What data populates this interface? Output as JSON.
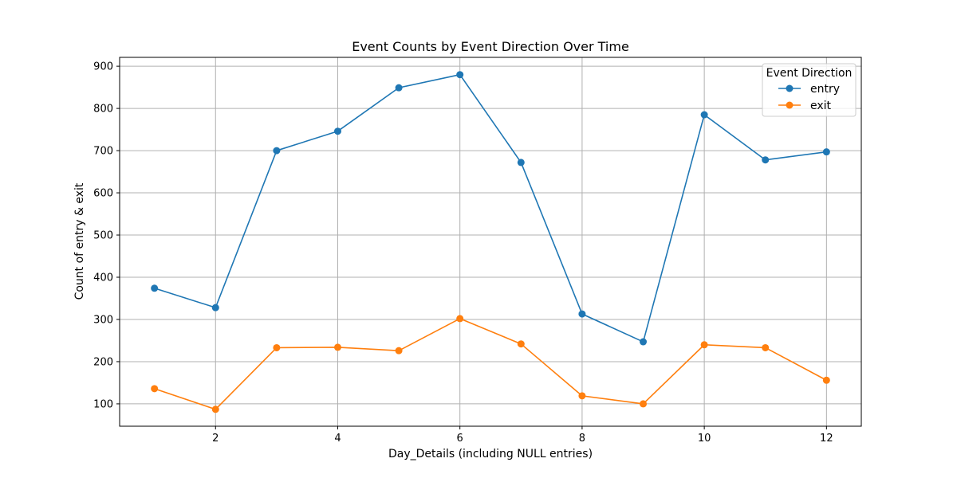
{
  "chart_data": {
    "type": "line",
    "title": "Event Counts by Event Direction Over Time",
    "xlabel": "Day_Details (including NULL entries)",
    "ylabel": "Count of entry & exit",
    "x": [
      1,
      2,
      3,
      4,
      5,
      6,
      7,
      8,
      9,
      10,
      11,
      12
    ],
    "xticks": [
      2,
      4,
      6,
      8,
      10,
      12
    ],
    "yticks": [
      100,
      200,
      300,
      400,
      500,
      600,
      700,
      800,
      900
    ],
    "xlim": [
      0.43,
      12.57
    ],
    "ylim": [
      47,
      921
    ],
    "grid": true,
    "legend": {
      "title": "Event Direction",
      "placement": "top-right"
    },
    "series": [
      {
        "name": "entry",
        "color": "#1f77b4",
        "values": [
          374,
          328,
          700,
          746,
          849,
          880,
          672,
          313,
          247,
          785,
          678,
          697
        ]
      },
      {
        "name": "exit",
        "color": "#ff7f0e",
        "values": [
          136,
          87,
          233,
          234,
          226,
          302,
          242,
          119,
          100,
          240,
          233,
          156
        ]
      }
    ]
  }
}
